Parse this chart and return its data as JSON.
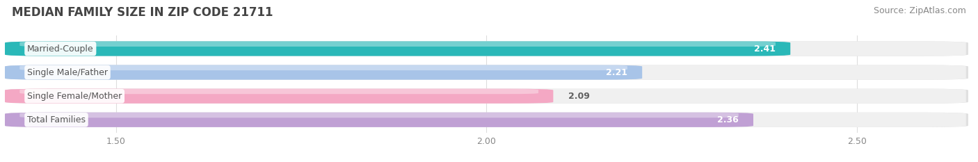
{
  "title": "MEDIAN FAMILY SIZE IN ZIP CODE 21711",
  "source": "Source: ZipAtlas.com",
  "categories": [
    "Married-Couple",
    "Single Male/Father",
    "Single Female/Mother",
    "Total Families"
  ],
  "values": [
    2.41,
    2.21,
    2.09,
    2.36
  ],
  "bar_colors": [
    "#2ab8b8",
    "#a8c4e8",
    "#f4a8c4",
    "#c0a0d4"
  ],
  "value_text_colors": [
    "#ffffff",
    "#ffffff",
    "#606060",
    "#ffffff"
  ],
  "xlim_data": [
    1.35,
    2.65
  ],
  "xticks": [
    1.5,
    2.0,
    2.5
  ],
  "xtick_labels": [
    "1.50",
    "2.00",
    "2.50"
  ],
  "bar_height": 0.62,
  "bar_gap": 0.38,
  "title_fontsize": 12,
  "source_fontsize": 9,
  "label_fontsize": 9,
  "value_fontsize": 9,
  "tick_fontsize": 9,
  "background_color": "#ffffff",
  "bar_bg_color": "#e8e8e8",
  "grid_color": "#dddddd",
  "label_text_color": "#555555"
}
